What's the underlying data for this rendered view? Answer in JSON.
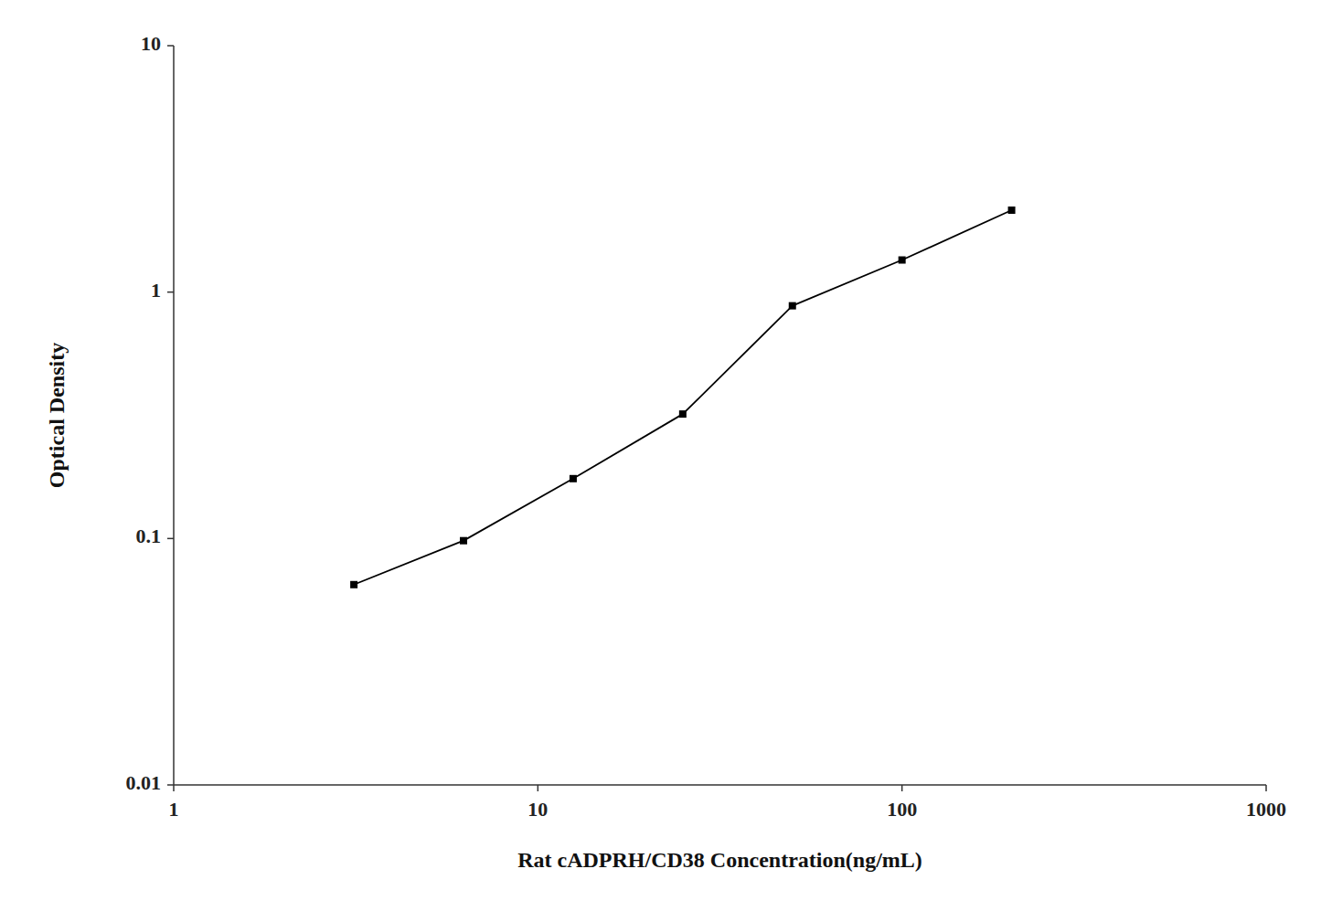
{
  "chart_data": {
    "type": "line",
    "x": [
      3.125,
      6.25,
      12.5,
      25,
      50,
      100,
      200
    ],
    "values": [
      0.065,
      0.098,
      0.175,
      0.32,
      0.88,
      1.35,
      2.15
    ],
    "color": "#000000",
    "marker": "square",
    "xlabel": "Rat cADPRH/CD38 Concentration(ng/mL)",
    "ylabel": "Optical Density",
    "xlim": [
      1,
      1000
    ],
    "ylim": [
      0.01,
      10
    ],
    "xticks": [
      1,
      10,
      100,
      1000
    ],
    "yticks": [
      0.01,
      0.1,
      1,
      10
    ],
    "log": true,
    "grid": false
  }
}
